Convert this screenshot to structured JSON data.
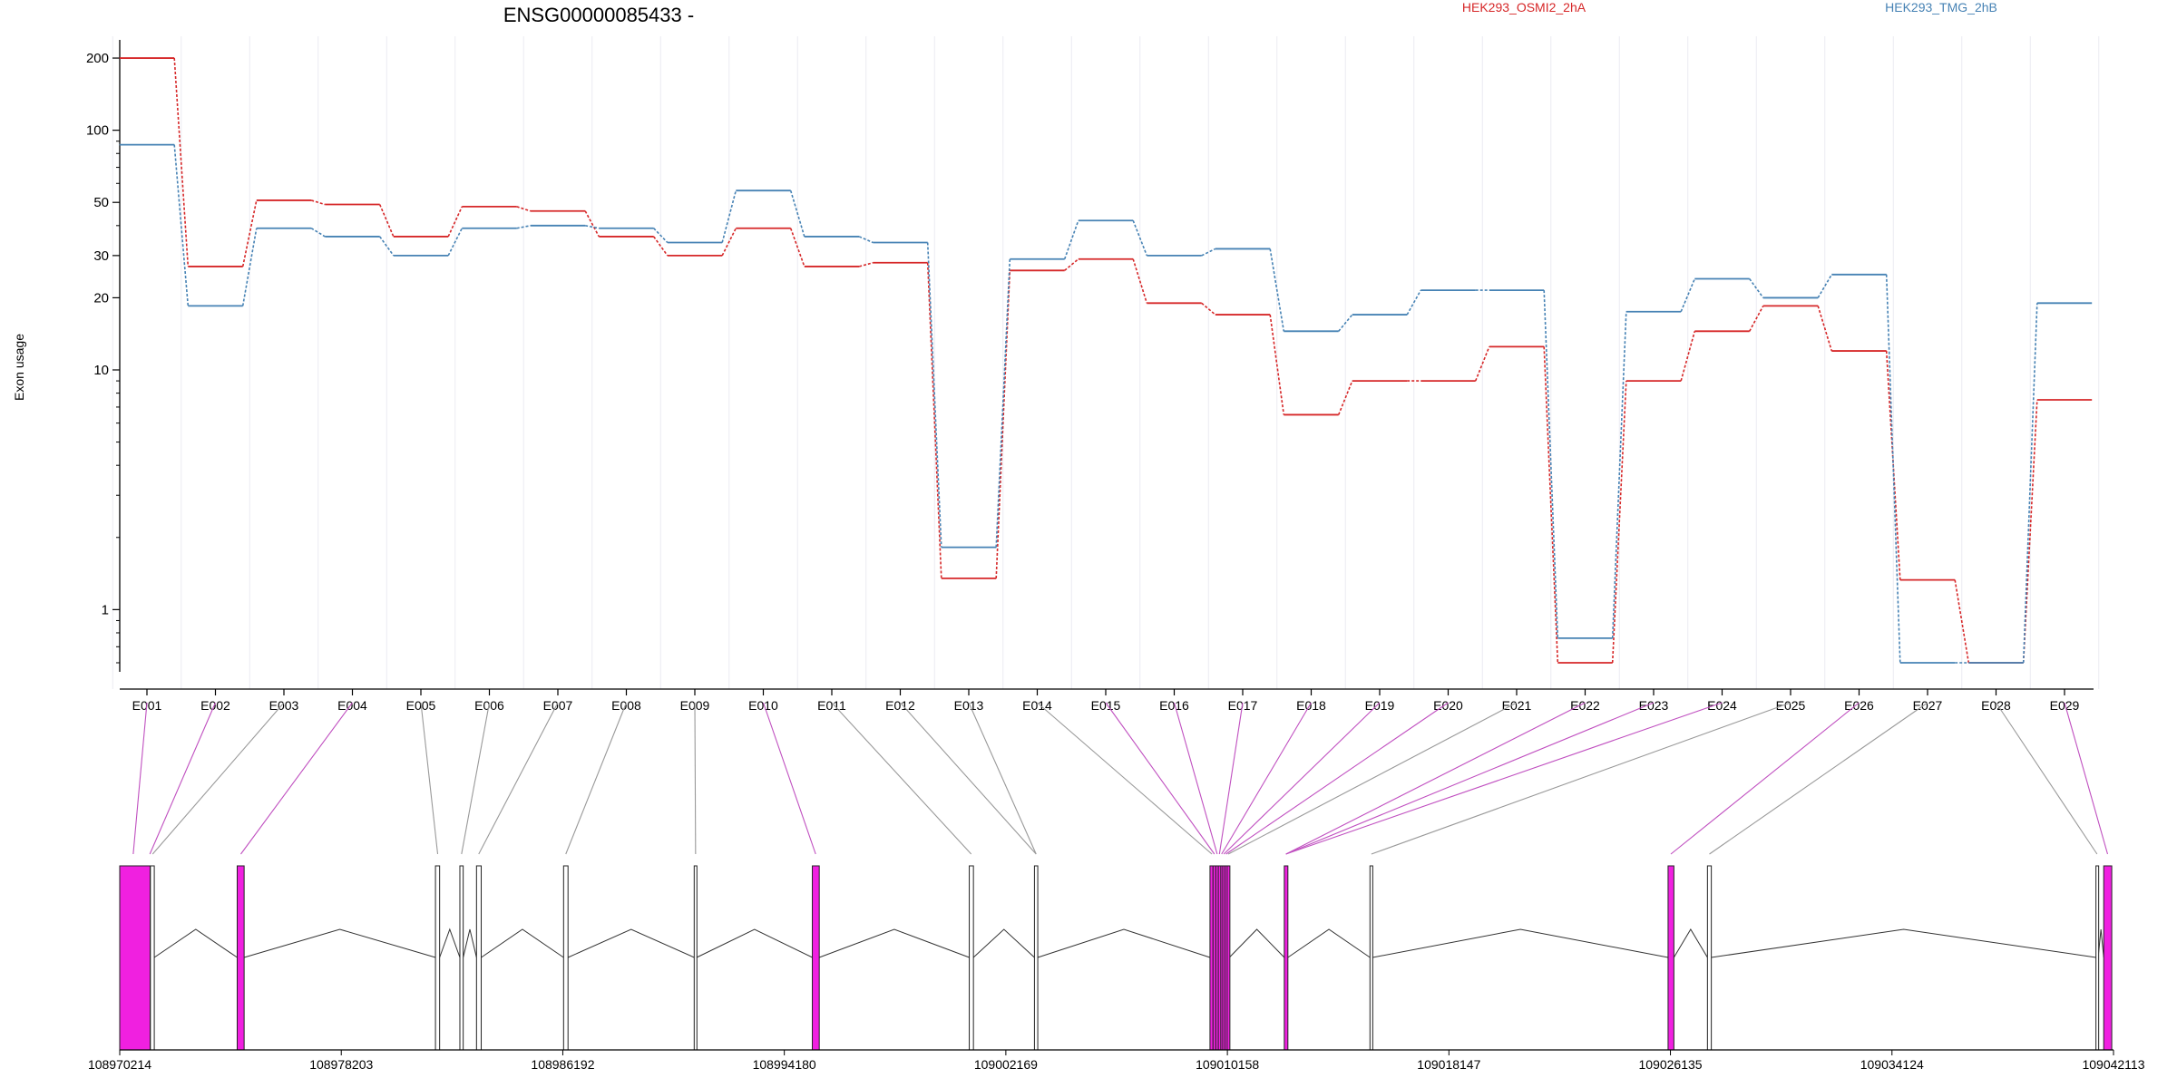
{
  "chart_data": {
    "type": "line",
    "title": "ENSG00000085433 -",
    "ylabel": "Exon usage",
    "xlabel": "",
    "y_scale": "log",
    "ylim": [
      0.55,
      230
    ],
    "y_ticks": [
      1,
      10,
      20,
      30,
      50,
      100,
      200
    ],
    "grid": false,
    "legend_position": "top-right",
    "categories": [
      "E001",
      "E002",
      "E003",
      "E004",
      "E005",
      "E006",
      "E007",
      "E008",
      "E009",
      "E010",
      "E011",
      "E012",
      "E013",
      "E014",
      "E015",
      "E016",
      "E017",
      "E018",
      "E019",
      "E020",
      "E021",
      "E022",
      "E023",
      "E024",
      "E025",
      "E026",
      "E027",
      "E028",
      "E029"
    ],
    "series": [
      {
        "name": "HEK293_OSMI2_2hA",
        "color": "#d62728",
        "values": [
          200,
          27,
          51,
          49,
          36,
          48,
          46,
          36,
          30,
          39,
          27,
          28,
          1.35,
          26,
          29,
          19,
          17,
          6.5,
          9,
          9,
          12.5,
          0.6,
          9,
          14.5,
          18.5,
          12,
          1.33,
          0.6,
          7.5
        ]
      },
      {
        "name": "HEK293_TMG_2hB",
        "color": "#4682b4",
        "values": [
          87,
          18.5,
          39,
          36,
          30,
          39,
          40,
          39,
          34,
          56,
          36,
          34,
          1.82,
          29,
          42,
          30,
          32,
          14.5,
          17,
          21.5,
          21.5,
          0.76,
          17.5,
          24,
          20,
          25,
          0.6,
          0.6,
          19
        ]
      }
    ],
    "gene_model": {
      "coordinate_ticks": [
        "108970214",
        "108978203",
        "108986192",
        "108994180",
        "109002169",
        "109010158",
        "109018147",
        "109026135",
        "109034124",
        "109042113"
      ],
      "coordinate_range": [
        108970214,
        109042113
      ],
      "exons": [
        {
          "start": 108970214,
          "end": 108971310,
          "significant": true
        },
        {
          "start": 108971320,
          "end": 108971460,
          "significant": false
        },
        {
          "start": 108974450,
          "end": 108974700,
          "significant": true
        },
        {
          "start": 108981600,
          "end": 108981750,
          "significant": false
        },
        {
          "start": 108982480,
          "end": 108982600,
          "significant": false
        },
        {
          "start": 108983080,
          "end": 108983250,
          "significant": false
        },
        {
          "start": 108986220,
          "end": 108986380,
          "significant": false
        },
        {
          "start": 108990930,
          "end": 108991020,
          "significant": false
        },
        {
          "start": 108995190,
          "end": 108995440,
          "significant": true
        },
        {
          "start": 109000850,
          "end": 109001000,
          "significant": false
        },
        {
          "start": 109003200,
          "end": 109003320,
          "significant": false
        },
        {
          "start": 109009530,
          "end": 109009640,
          "significant": true
        },
        {
          "start": 109009640,
          "end": 109009740,
          "significant": true
        },
        {
          "start": 109009740,
          "end": 109009830,
          "significant": true
        },
        {
          "start": 109009830,
          "end": 109009920,
          "significant": true
        },
        {
          "start": 109009920,
          "end": 109009990,
          "significant": true
        },
        {
          "start": 109009990,
          "end": 109010070,
          "significant": true
        },
        {
          "start": 109010070,
          "end": 109010150,
          "significant": true
        },
        {
          "start": 109010150,
          "end": 109010230,
          "significant": true
        },
        {
          "start": 109012210,
          "end": 109012340,
          "significant": true
        },
        {
          "start": 109015300,
          "end": 109015400,
          "significant": false
        },
        {
          "start": 109026050,
          "end": 109026260,
          "significant": true
        },
        {
          "start": 109027470,
          "end": 109027610,
          "significant": false
        },
        {
          "start": 109041480,
          "end": 109041560,
          "significant": false
        },
        {
          "start": 109041760,
          "end": 109042050,
          "significant": true
        }
      ],
      "exon_links": [
        {
          "label": "E001",
          "coord": 108970700,
          "significant": true
        },
        {
          "label": "E002",
          "coord": 108971300,
          "significant": true
        },
        {
          "label": "E003",
          "coord": 108971400,
          "significant": false
        },
        {
          "label": "E004",
          "coord": 108974580,
          "significant": true
        },
        {
          "label": "E005",
          "coord": 108981680,
          "significant": false
        },
        {
          "label": "E006",
          "coord": 108982540,
          "significant": false
        },
        {
          "label": "E007",
          "coord": 108983160,
          "significant": false
        },
        {
          "label": "E008",
          "coord": 108986300,
          "significant": false
        },
        {
          "label": "E009",
          "coord": 108990980,
          "significant": false
        },
        {
          "label": "E010",
          "coord": 108995310,
          "significant": true
        },
        {
          "label": "E011",
          "coord": 109000920,
          "significant": false
        },
        {
          "label": "E012",
          "coord": 109003260,
          "significant": false
        },
        {
          "label": "E013",
          "coord": 109003260,
          "significant": false
        },
        {
          "label": "E014",
          "coord": 109009600,
          "significant": false
        },
        {
          "label": "E015",
          "coord": 109009690,
          "significant": true
        },
        {
          "label": "E016",
          "coord": 109009790,
          "significant": true
        },
        {
          "label": "E017",
          "coord": 109009870,
          "significant": true
        },
        {
          "label": "E018",
          "coord": 109009950,
          "significant": true
        },
        {
          "label": "E019",
          "coord": 109010030,
          "significant": true
        },
        {
          "label": "E020",
          "coord": 109010110,
          "significant": true
        },
        {
          "label": "E021",
          "coord": 109010190,
          "significant": false
        },
        {
          "label": "E022",
          "coord": 109012270,
          "significant": true
        },
        {
          "label": "E023",
          "coord": 109012270,
          "significant": true
        },
        {
          "label": "E024",
          "coord": 109012270,
          "significant": true
        },
        {
          "label": "E025",
          "coord": 109015350,
          "significant": false
        },
        {
          "label": "E026",
          "coord": 109026150,
          "significant": true
        },
        {
          "label": "E027",
          "coord": 109027540,
          "significant": false
        },
        {
          "label": "E028",
          "coord": 109041520,
          "significant": false
        },
        {
          "label": "E029",
          "coord": 109041900,
          "significant": true
        }
      ]
    }
  }
}
